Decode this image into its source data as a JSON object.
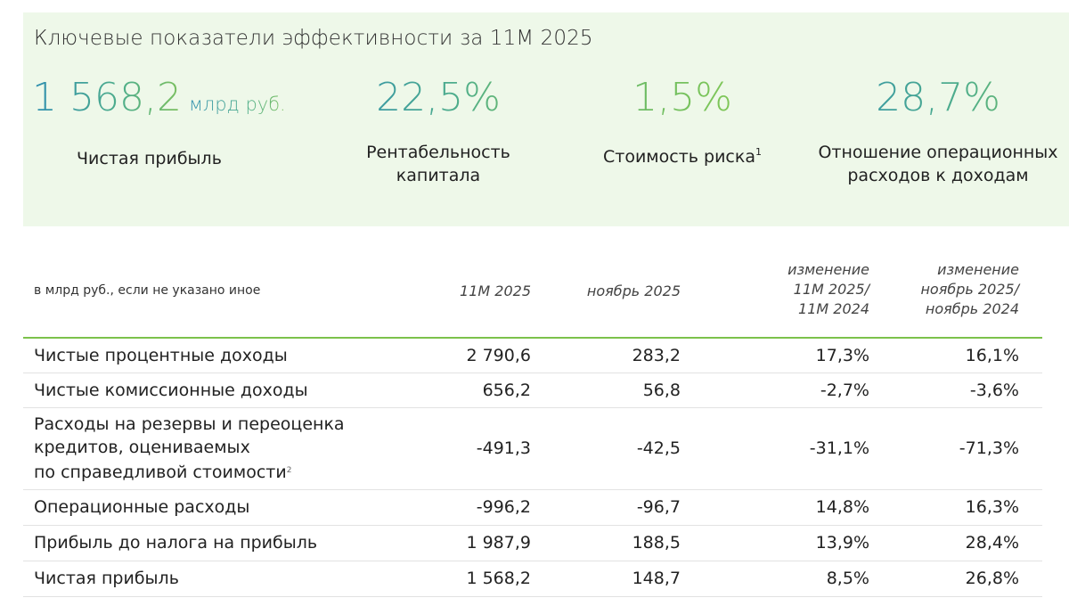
{
  "kpi": {
    "title": "Ключевые показатели эффективности за 11М 2025",
    "items": [
      {
        "value": "1 568,2",
        "unit": "млрд руб.",
        "label": "Чистая прибыль"
      },
      {
        "value": "22,5%",
        "label_line1": "Рентабельность",
        "label_line2": "капитала"
      },
      {
        "value": "1,5%",
        "label": "Стоимость риска",
        "sup": "1"
      },
      {
        "value": "28,7%",
        "label_line1": "Отношение операционных",
        "label_line2": "расходов к доходам"
      }
    ]
  },
  "table": {
    "units_note": "в млрд руб., если не указано иное",
    "headers": {
      "col1": "11М 2025",
      "col2": "ноябрь 2025",
      "col3": [
        "изменение",
        "11М 2025/",
        "11М 2024"
      ],
      "col4": [
        "изменение",
        "ноябрь 2025/",
        "ноябрь 2024"
      ]
    },
    "rows": [
      {
        "label": [
          "Чистые процентные доходы"
        ],
        "v1": "2 790,6",
        "v2": "283,2",
        "v3": "17,3%",
        "v4": "16,1%"
      },
      {
        "label": [
          "Чистые комиссионные доходы"
        ],
        "v1": "656,2",
        "v2": "56,8",
        "v3": "-2,7%",
        "v4": "-3,6%"
      },
      {
        "label": [
          "Расходы на резервы и переоценка",
          "кредитов, оцениваемых",
          "по справедливой стоимости"
        ],
        "sup": "2",
        "v1": "-491,3",
        "v2": "-42,5",
        "v3": "-31,1%",
        "v4": "-71,3%"
      },
      {
        "label": [
          "Операционные расходы"
        ],
        "v1": "-996,2",
        "v2": "-96,7",
        "v3": "14,8%",
        "v4": "16,3%"
      },
      {
        "label": [
          "Прибыль до налога на прибыль"
        ],
        "v1": "1 987,9",
        "v2": "188,5",
        "v3": "13,9%",
        "v4": "28,4%"
      },
      {
        "label": [
          "Чистая прибыль"
        ],
        "v1": "1 568,2",
        "v2": "148,7",
        "v3": "8,5%",
        "v4": "26,8%"
      }
    ]
  },
  "colors": {
    "accent_green": "#7cc24a",
    "panel_bg": "#eef8e9",
    "value_blue": "#2f8fb0"
  }
}
